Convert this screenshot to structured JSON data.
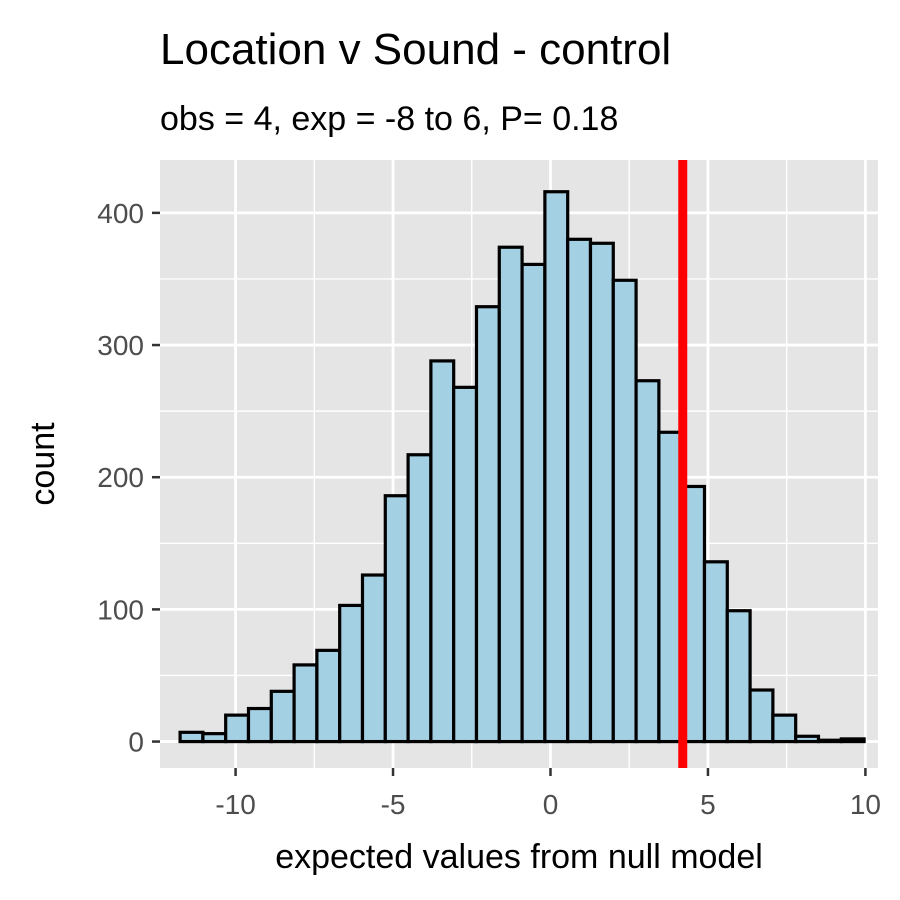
{
  "chart_data": {
    "type": "bar",
    "title": "Location v Sound - control",
    "subtitle": "obs = 4, exp = -8 to 6, P= 0.18",
    "xlabel": "expected values from null model",
    "ylabel": "count",
    "xlim": [
      -12.4,
      10.4
    ],
    "ylim": [
      -20,
      440
    ],
    "x_ticks": [
      -10,
      -5,
      0,
      5,
      10
    ],
    "x_tick_labels": [
      "-10",
      "-5",
      "0",
      "5",
      "10"
    ],
    "y_ticks": [
      0,
      100,
      200,
      300,
      400
    ],
    "y_tick_labels": [
      "0",
      "100",
      "200",
      "300",
      "400"
    ],
    "grid": true,
    "bin_width": 0.724,
    "bins": [
      {
        "x": -11.4,
        "count": 7
      },
      {
        "x": -10.676,
        "count": 6
      },
      {
        "x": -9.952,
        "count": 20
      },
      {
        "x": -9.228,
        "count": 25
      },
      {
        "x": -8.504,
        "count": 38
      },
      {
        "x": -7.78,
        "count": 58
      },
      {
        "x": -7.056,
        "count": 69
      },
      {
        "x": -6.332,
        "count": 103
      },
      {
        "x": -5.608,
        "count": 126
      },
      {
        "x": -4.884,
        "count": 186
      },
      {
        "x": -4.16,
        "count": 217
      },
      {
        "x": -3.436,
        "count": 288
      },
      {
        "x": -2.712,
        "count": 268
      },
      {
        "x": -1.988,
        "count": 329
      },
      {
        "x": -1.264,
        "count": 374
      },
      {
        "x": -0.54,
        "count": 361
      },
      {
        "x": 0.184,
        "count": 416
      },
      {
        "x": 0.908,
        "count": 380
      },
      {
        "x": 1.632,
        "count": 377
      },
      {
        "x": 2.356,
        "count": 349
      },
      {
        "x": 3.08,
        "count": 273
      },
      {
        "x": 3.804,
        "count": 234
      },
      {
        "x": 4.528,
        "count": 193
      },
      {
        "x": 5.252,
        "count": 136
      },
      {
        "x": 5.976,
        "count": 99
      },
      {
        "x": 6.7,
        "count": 39
      },
      {
        "x": 7.424,
        "count": 20
      },
      {
        "x": 8.148,
        "count": 4
      },
      {
        "x": 8.872,
        "count": 1
      },
      {
        "x": 9.596,
        "count": 2
      }
    ],
    "observed_value": 4.2,
    "colors": {
      "panel": "#e5e5e5",
      "grid": "#ffffff",
      "bar_fill": "#a3d0e2",
      "bar_stroke": "#000000",
      "observed_line": "#ff0000",
      "text": "#000000",
      "tick_text": "#4d4d4d"
    }
  }
}
